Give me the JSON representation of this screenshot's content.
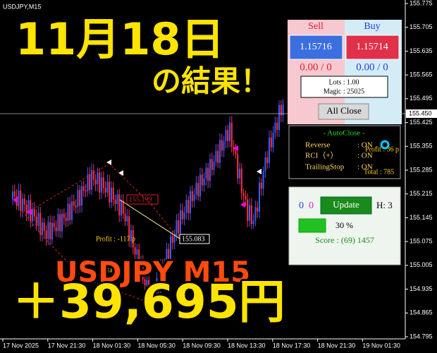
{
  "chart": {
    "symbol": "USDJPY,M15",
    "price_ticks": [
      "155.775",
      "155.705",
      "155.635",
      "155.565",
      "155.495",
      "155.425",
      "155.355",
      "155.285",
      "155.215",
      "155.145",
      "155.075",
      "155.005",
      "154.935",
      "154.865",
      "154.795"
    ],
    "current_price": "155.450",
    "time_labels": [
      "17 Nov 2025",
      "17 Nov 21:30",
      "18 Nov 01:30",
      "18 Nov 05:30",
      "18 Nov 09:30",
      "18 Nov 13:30",
      "18 Nov 17:30",
      "18 Nov 21:30",
      "19 Nov 01:30"
    ]
  },
  "overlay": {
    "date": "11月18日",
    "subtitle": "の結果！",
    "pair": "USDJPY  M15",
    "profit": "＋39,695円"
  },
  "annotations": {
    "profit": "Profit : -117 p",
    "total": "Total : 633 p",
    "level_red": "155.199",
    "level_white": "155.083",
    "profit_right": "Profit : 36 p",
    "total_right": "Total : 785"
  },
  "trade_panel": {
    "sell_label": "Sell",
    "buy_label": "Buy",
    "sell_price": "1.15716",
    "buy_price": "1.15714",
    "sell_pnl": "0.00 / 0",
    "buy_pnl": "0.00 / 0",
    "lots": "Lots : 1.00",
    "magic": "Magic : 25025",
    "close_all": "All Close"
  },
  "autoclose": {
    "title": "- AutoClose -",
    "rows": [
      [
        "Reverse",
        ": ON"
      ],
      [
        "RCI（+）",
        ": ON"
      ],
      [
        "TrailingStop",
        ": ON"
      ]
    ]
  },
  "update_panel": {
    "left_count": "0",
    "right_count": "0",
    "button": "Update",
    "hours": "H: 3",
    "percent": "30 %",
    "score": "Score : (69) 1457"
  }
}
